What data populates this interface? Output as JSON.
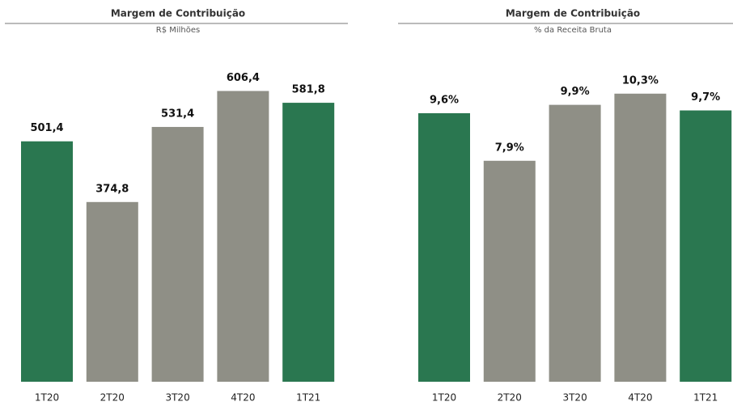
{
  "chart_data": [
    {
      "type": "bar",
      "title": "Margem de Contribuição",
      "subtitle": "R$ Milhões",
      "categories": [
        "1T20",
        "2T20",
        "3T20",
        "4T20",
        "1T21"
      ],
      "values": [
        501.4,
        374.8,
        531.4,
        606.4,
        581.8
      ],
      "value_labels": [
        "501,4",
        "374,8",
        "531,4",
        "606,4",
        "581,8"
      ],
      "colors": [
        "#2a7750",
        "#8f8f86",
        "#8f8f86",
        "#8f8f86",
        "#2a7750"
      ],
      "ylim": [
        0,
        700
      ]
    },
    {
      "type": "bar",
      "title": "Margem de Contribuição",
      "subtitle": "% da Receita Bruta",
      "categories": [
        "1T20",
        "2T20",
        "3T20",
        "4T20",
        "1T21"
      ],
      "values": [
        9.6,
        7.9,
        9.9,
        10.3,
        9.7
      ],
      "value_labels": [
        "9,6%",
        "7,9%",
        "9,9%",
        "10,3%",
        "9,7%"
      ],
      "colors": [
        "#2a7750",
        "#8f8f86",
        "#8f8f86",
        "#8f8f86",
        "#2a7750"
      ],
      "ylim": [
        0,
        12
      ]
    }
  ]
}
